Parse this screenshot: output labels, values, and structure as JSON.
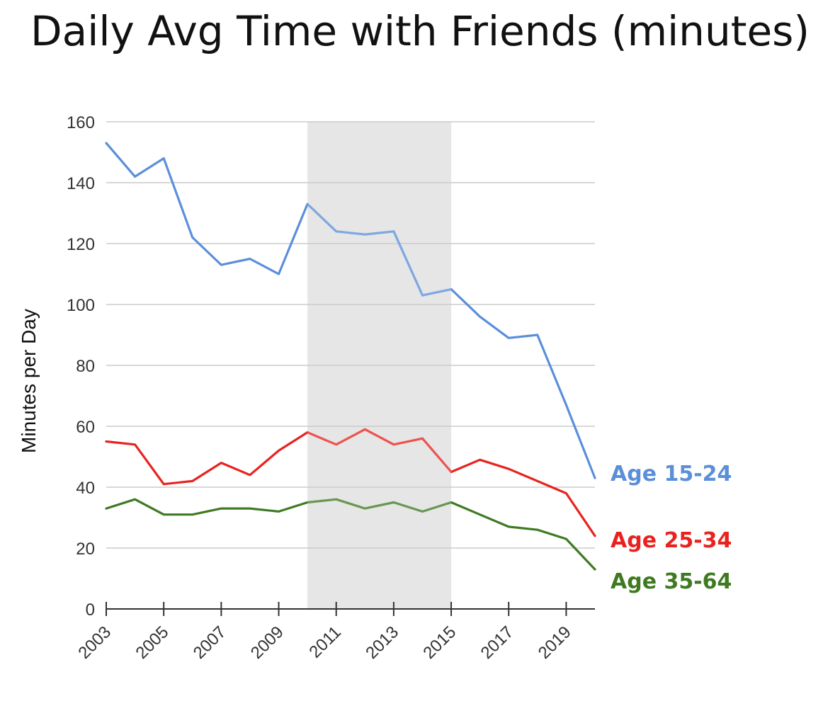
{
  "chart_data": {
    "type": "line",
    "title": "Daily Avg Time with Friends (minutes)",
    "xlabel": "",
    "ylabel": "Minutes per Day",
    "x": [
      2003,
      2004,
      2005,
      2006,
      2007,
      2008,
      2009,
      2010,
      2011,
      2012,
      2013,
      2014,
      2015,
      2016,
      2017,
      2018,
      2019,
      2020
    ],
    "x_tick_labels": [
      "2003",
      "2005",
      "2007",
      "2009",
      "2011",
      "2013",
      "2015",
      "2017",
      "2019"
    ],
    "y_ticks": [
      0,
      20,
      40,
      60,
      80,
      100,
      120,
      140,
      160
    ],
    "xlim": [
      2003,
      2020
    ],
    "ylim": [
      0,
      160
    ],
    "grid": true,
    "shaded_region": {
      "x_start": 2010,
      "x_end": 2015,
      "color": "#e6e6e6"
    },
    "legend": "direct labels at right end of lines",
    "series": [
      {
        "name": "Age 15-24",
        "color": "#5b8fd9",
        "values": [
          153,
          142,
          148,
          122,
          113,
          115,
          110,
          133,
          124,
          123,
          124,
          103,
          105,
          96,
          89,
          90,
          67,
          43
        ]
      },
      {
        "name": "Age 25-34",
        "color": "#e8231f",
        "values": [
          55,
          54,
          41,
          42,
          48,
          44,
          52,
          58,
          54,
          59,
          54,
          56,
          45,
          49,
          46,
          42,
          38,
          24
        ]
      },
      {
        "name": "Age 35-64",
        "color": "#3f7a22",
        "values": [
          33,
          36,
          31,
          31,
          33,
          33,
          32,
          35,
          36,
          33,
          35,
          32,
          35,
          31,
          27,
          26,
          23,
          13
        ]
      }
    ]
  }
}
